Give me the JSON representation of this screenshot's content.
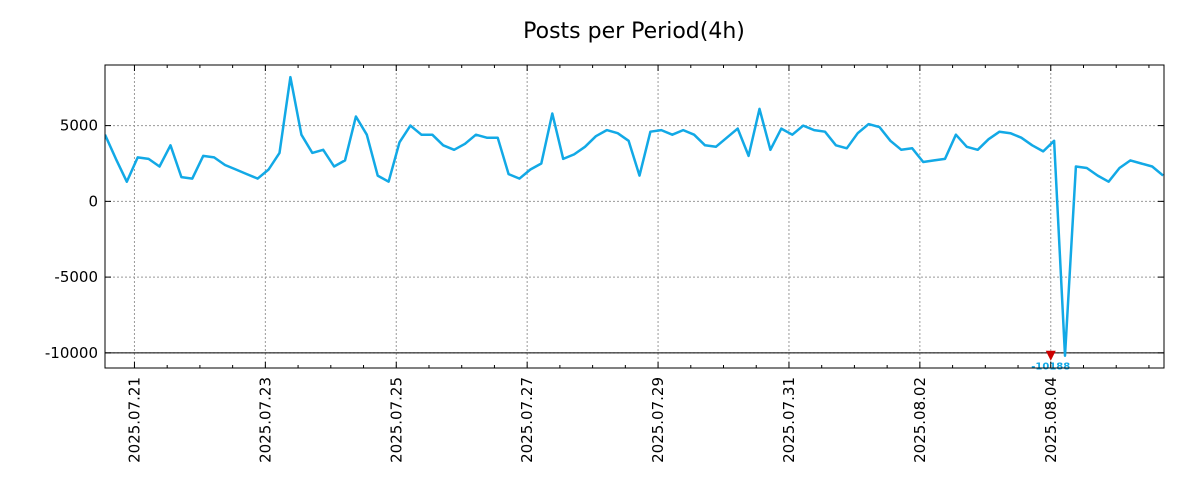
{
  "chart_data": {
    "type": "line",
    "title": "Posts per Period(4h)",
    "xlabel": "",
    "ylabel": "",
    "x_range_days": [
      -0.45,
      15.73
    ],
    "ylim": [
      -11000,
      9000
    ],
    "grid": true,
    "x_ticks": [
      {
        "day": 0,
        "label": "2025.07.21"
      },
      {
        "day": 2,
        "label": "2025.07.23"
      },
      {
        "day": 4,
        "label": "2025.07.25"
      },
      {
        "day": 6,
        "label": "2025.07.27"
      },
      {
        "day": 8,
        "label": "2025.07.29"
      },
      {
        "day": 10,
        "label": "2025.07.31"
      },
      {
        "day": 12,
        "label": "2025.08.02"
      },
      {
        "day": 14,
        "label": "2025.08.04"
      }
    ],
    "y_ticks": [
      {
        "value": 5000,
        "label": "5000"
      },
      {
        "value": 0,
        "label": "0"
      },
      {
        "value": -5000,
        "label": "-5000"
      },
      {
        "value": -10000,
        "label": "-10000"
      }
    ],
    "reference_line": -10000,
    "series": [
      {
        "name": "Posts",
        "color": "#12a9e6",
        "x_start_day": -0.45,
        "x_step_day": 0.16667,
        "values": [
          4400,
          2800,
          1300,
          2900,
          2800,
          2300,
          3700,
          1600,
          1500,
          3000,
          2900,
          2400,
          2100,
          1800,
          1500,
          2100,
          3200,
          8200,
          4400,
          3200,
          3400,
          2300,
          2700,
          5600,
          4400,
          1700,
          1300,
          3900,
          5000,
          4400,
          4400,
          3700,
          3400,
          3800,
          4400,
          4200,
          4200,
          1800,
          1500,
          2100,
          2500,
          5800,
          2800,
          3100,
          3600,
          4300,
          4700,
          4500,
          4000,
          1700,
          4600,
          4700,
          4400,
          4700,
          4400,
          3700,
          3600,
          4200,
          4800,
          3000,
          6100,
          3400,
          4800,
          4400,
          5000,
          4700,
          4600,
          3700,
          3500,
          4500,
          5100,
          4900,
          4000,
          3400,
          3500,
          2600,
          2700,
          2800,
          4400,
          3600,
          3400,
          4100,
          4600,
          4500,
          4200,
          3700,
          3300,
          4000,
          -10188,
          2300,
          2200,
          1700,
          1300,
          2200,
          2700,
          2500,
          2300,
          1700
        ]
      }
    ],
    "annotations": [
      {
        "text": "-10188",
        "day": 14.0,
        "value": -10188,
        "marker_color": "#cc0000",
        "text_color": "#12a9e6"
      }
    ]
  }
}
